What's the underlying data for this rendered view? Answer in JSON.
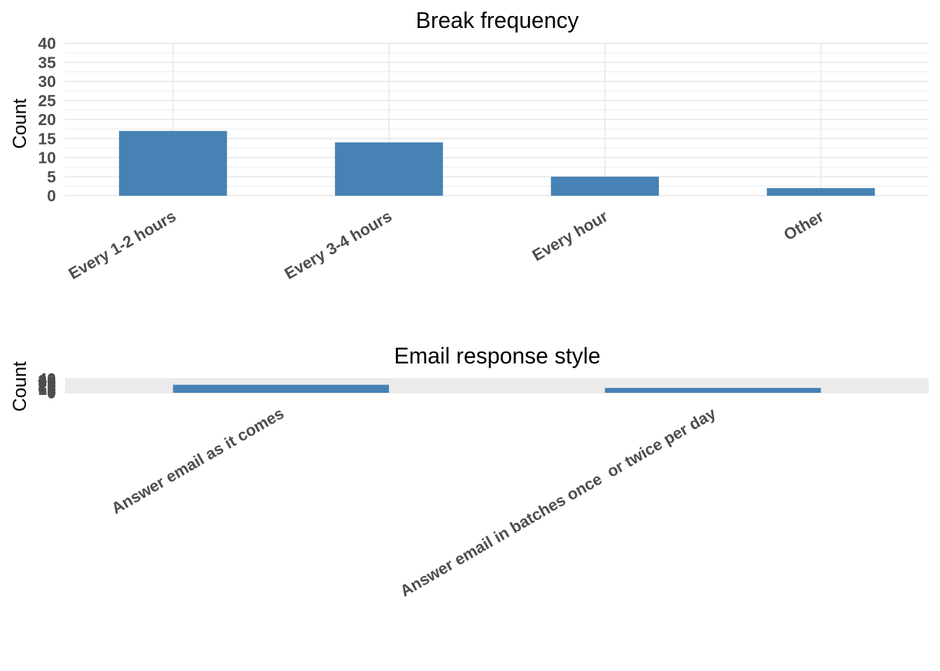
{
  "chart_data": [
    {
      "type": "bar",
      "title": "Break frequency",
      "xlabel": "",
      "ylabel": "Count",
      "categories": [
        "Every 1-2 hours",
        "Every 3-4 hours",
        "Every hour",
        "Other"
      ],
      "values": [
        17,
        14,
        5,
        2
      ],
      "ylim": [
        0,
        40
      ],
      "yticks": [
        "0",
        "5",
        "10",
        "15",
        "20",
        "25",
        "30",
        "35",
        "40"
      ],
      "grid": true,
      "bar_color": "#4682b4"
    },
    {
      "type": "bar",
      "title": "Email response style",
      "xlabel": "",
      "ylabel": "Count",
      "categories": [
        "Answer email as it comes",
        "Answer email in batches once  or twice per day"
      ],
      "values": [
        23,
        14
      ],
      "ylim": [
        0,
        40
      ],
      "yticks": [
        "0",
        "5",
        "10",
        "15",
        "20",
        "25",
        "30",
        "35",
        "40"
      ],
      "grid": true,
      "bar_color": "#4682b4"
    }
  ]
}
